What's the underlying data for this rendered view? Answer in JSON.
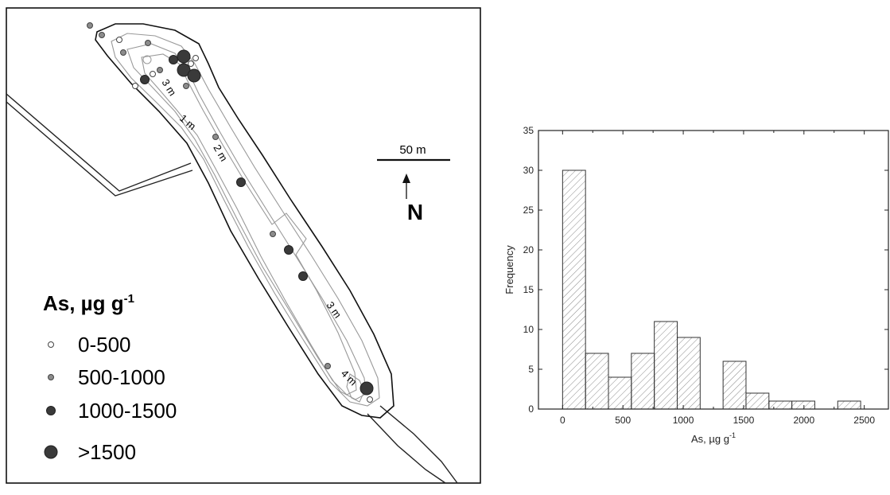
{
  "map": {
    "legend_title_main": "As, µg g",
    "legend_title_sup": "-1",
    "legend": [
      {
        "label": "0-500",
        "color": "#ffffff"
      },
      {
        "label": "500-1000",
        "color": "#8c8c8c"
      },
      {
        "label": "1000-1500",
        "color": "#3a3a3a"
      },
      {
        "label": ">1500",
        "color": "#3a3a3a"
      }
    ],
    "scale_bar_label": "50 m",
    "north_label": "N",
    "contour_labels": [
      "3 m",
      "1 m",
      "2 m",
      "3 m",
      "4 m"
    ]
  },
  "chart_data": {
    "type": "bar",
    "xlabel_main": "As, µg g",
    "xlabel_sup": "-1",
    "ylabel": "Frequency",
    "xlim": [
      -200,
      2700
    ],
    "ylim": [
      0,
      35
    ],
    "xticks": [
      0,
      500,
      1000,
      1500,
      2000,
      2500
    ],
    "yticks": [
      0,
      5,
      10,
      15,
      20,
      25,
      30,
      35
    ],
    "bin_width": 190,
    "bins": [
      {
        "x": 0,
        "value": 30
      },
      {
        "x": 190,
        "value": 7
      },
      {
        "x": 380,
        "value": 4
      },
      {
        "x": 570,
        "value": 7
      },
      {
        "x": 760,
        "value": 11
      },
      {
        "x": 950,
        "value": 9
      },
      {
        "x": 1140,
        "value": 0
      },
      {
        "x": 1330,
        "value": 6
      },
      {
        "x": 1520,
        "value": 2
      },
      {
        "x": 1710,
        "value": 1
      },
      {
        "x": 1900,
        "value": 1
      },
      {
        "x": 2090,
        "value": 0
      },
      {
        "x": 2280,
        "value": 1
      }
    ],
    "fill_pattern": "diagonal-hatch",
    "grid": false
  }
}
